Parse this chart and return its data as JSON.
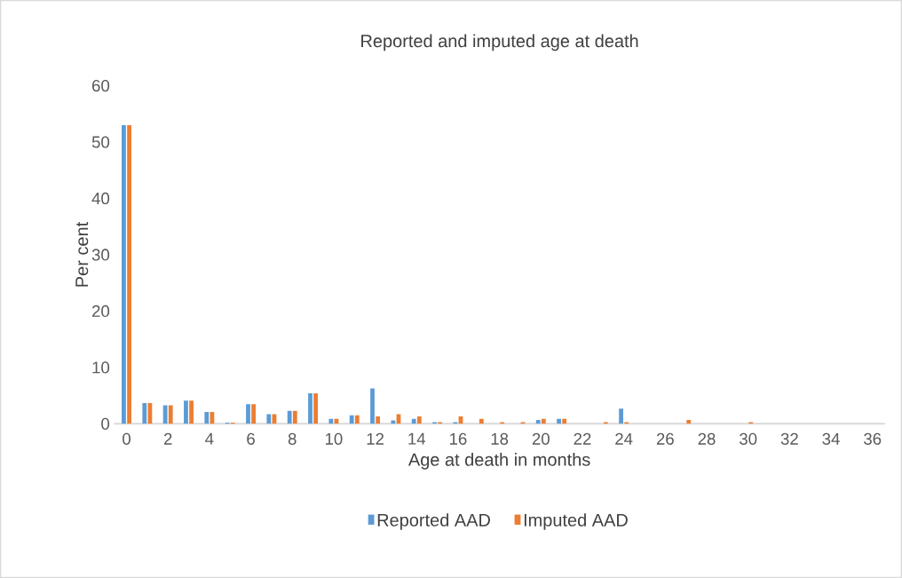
{
  "chart_data": {
    "type": "bar",
    "title": "Reported and imputed age at death",
    "xlabel": "Age at death in months",
    "ylabel": "Per cent",
    "categories": [
      "0",
      null,
      "2",
      null,
      "4",
      null,
      "6",
      null,
      "8",
      null,
      "10",
      null,
      "12",
      null,
      "14",
      null,
      "16",
      null,
      "18",
      null,
      "20",
      null,
      "22",
      null,
      "24",
      null,
      "26",
      null,
      "28",
      null,
      "30",
      null,
      "32",
      null,
      "34",
      null,
      "36"
    ],
    "series": [
      {
        "name": "Reported AAD",
        "color": "#5b9bd5",
        "values": [
          53,
          3.7,
          3.3,
          4.1,
          2.1,
          0.2,
          3.5,
          1.7,
          2.3,
          5.4,
          0.9,
          1.5,
          6.3,
          0.6,
          0.9,
          0.3,
          0.3,
          0,
          0,
          0,
          0.7,
          0.9,
          0,
          0,
          2.7,
          0,
          0,
          0,
          0,
          0,
          0,
          0,
          0,
          0,
          0,
          0,
          0
        ]
      },
      {
        "name": "Imputed AAD",
        "color": "#ed7d31",
        "values": [
          53,
          3.7,
          3.3,
          4.1,
          2.1,
          0.2,
          3.5,
          1.7,
          2.3,
          5.4,
          0.9,
          1.5,
          1.3,
          1.7,
          1.3,
          0.3,
          1.3,
          0.9,
          0.3,
          0.3,
          0.9,
          0.9,
          0,
          0.3,
          0.3,
          0,
          0,
          0.7,
          0,
          0,
          0.3,
          0,
          0,
          0,
          0,
          0,
          0
        ]
      }
    ],
    "ylim": [
      0,
      60
    ],
    "yticks": [
      0,
      10,
      20,
      30,
      40,
      50,
      60
    ],
    "legend": "bottom"
  }
}
